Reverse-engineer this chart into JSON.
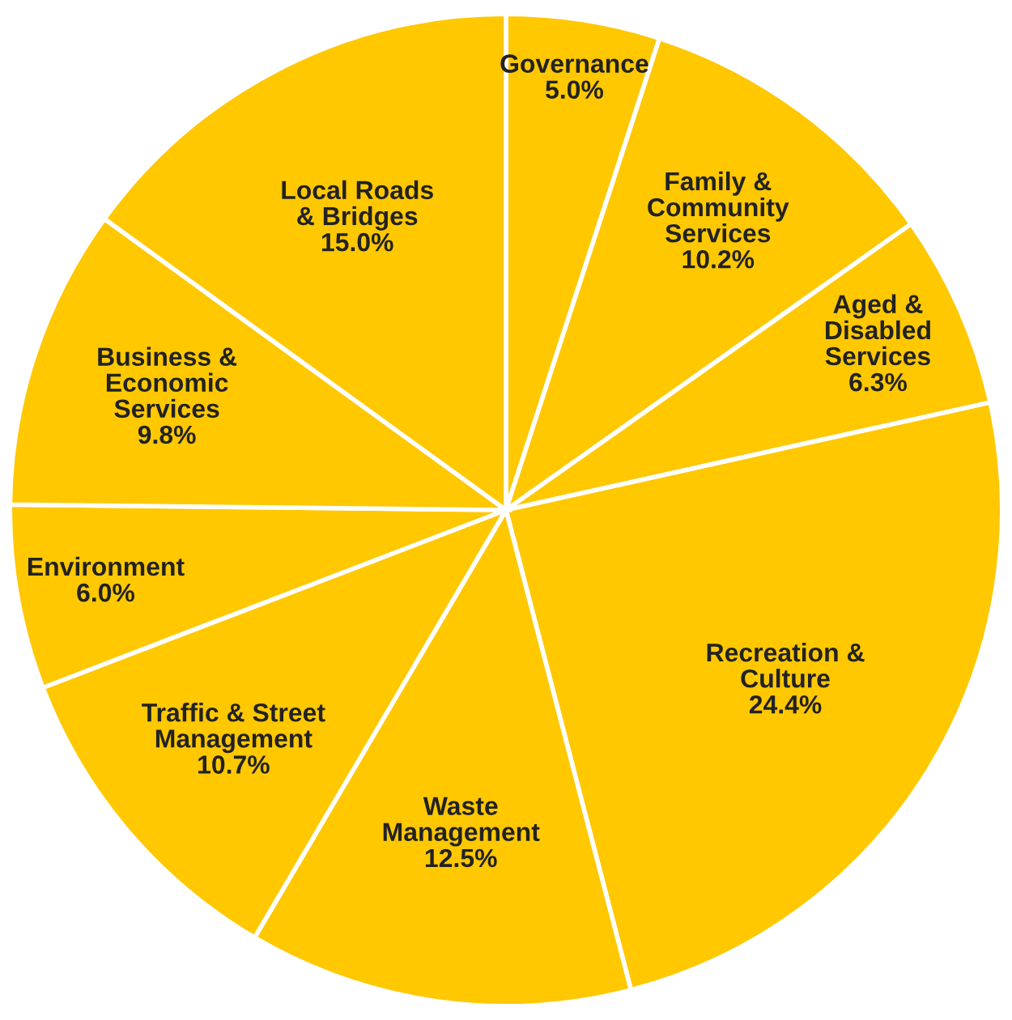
{
  "chart_data": {
    "type": "pie",
    "categories": [
      "Governance",
      "Family &\nCommunity\nServices",
      "Aged &\nDisabled\nServices",
      "Recreation &\nCulture",
      "Waste\nManagement",
      "Traffic & Street\nManagement",
      "Environment",
      "Business &\nEconomic\nServices",
      "Local Roads\n& Bridges"
    ],
    "values": [
      5.0,
      10.2,
      6.3,
      24.4,
      12.5,
      10.7,
      6.0,
      9.8,
      15.0
    ],
    "value_labels": [
      "5.0%",
      "10.2%",
      "6.3%",
      "24.4%",
      "12.5%",
      "10.7%",
      "6.0%",
      "9.8%",
      "15.0%"
    ],
    "colors": [
      "#ffc800",
      "#ffc800",
      "#ffc800",
      "#ffc800",
      "#ffc800",
      "#ffc800",
      "#ffc800",
      "#ffc800",
      "#ffc800"
    ],
    "legend": false
  }
}
